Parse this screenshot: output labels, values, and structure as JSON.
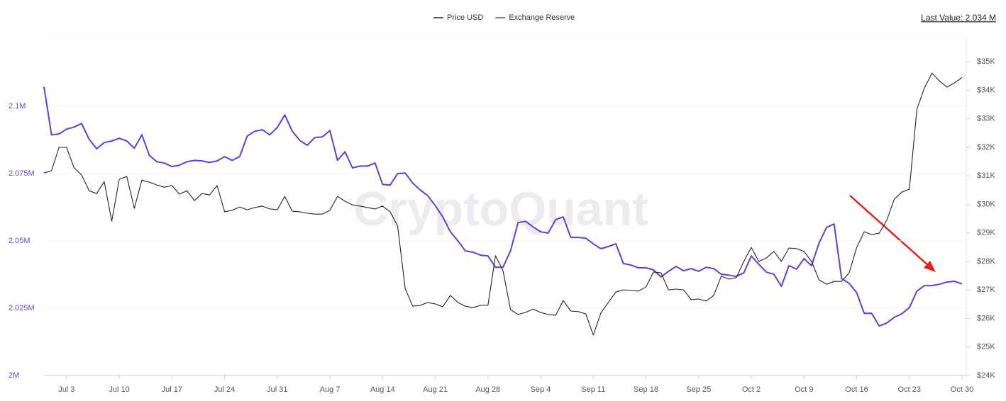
{
  "chart_data": {
    "type": "line",
    "watermark": "CryptoQuant",
    "last_value": "Last Value: 2.034 M",
    "categories": [
      null,
      null,
      null,
      "Jul 3",
      null,
      null,
      null,
      null,
      null,
      null,
      "Jul 10",
      null,
      null,
      null,
      null,
      null,
      null,
      "Jul 17",
      null,
      null,
      null,
      null,
      null,
      null,
      "Jul 24",
      null,
      null,
      null,
      null,
      null,
      null,
      "Jul 31",
      null,
      null,
      null,
      null,
      null,
      null,
      "Aug 7",
      null,
      null,
      null,
      null,
      null,
      null,
      "Aug 14",
      null,
      null,
      null,
      null,
      null,
      null,
      "Aug 21",
      null,
      null,
      null,
      null,
      null,
      null,
      "Aug 28",
      null,
      null,
      null,
      null,
      null,
      null,
      "Sep 4",
      null,
      null,
      null,
      null,
      null,
      null,
      "Sep 11",
      null,
      null,
      null,
      null,
      null,
      null,
      "Sep 18",
      null,
      null,
      null,
      null,
      null,
      null,
      "Sep 25",
      null,
      null,
      null,
      null,
      null,
      null,
      "Oct 2",
      null,
      null,
      null,
      null,
      null,
      null,
      "Oct 9",
      null,
      null,
      null,
      null,
      null,
      null,
      "Oct 16",
      null,
      null,
      null,
      null,
      null,
      null,
      "Oct 23",
      null,
      null,
      null,
      null,
      null,
      null,
      "Oct 30"
    ],
    "series": [
      {
        "name": "Price USD",
        "color": "#222222",
        "axis": "y2",
        "values": [
          31100,
          31180,
          32000,
          32000,
          31280,
          31030,
          30480,
          30380,
          30800,
          29410,
          30880,
          30980,
          29860,
          30850,
          30780,
          30680,
          30600,
          30660,
          30360,
          30480,
          30130,
          30380,
          30330,
          30660,
          29740,
          29790,
          29910,
          29810,
          29890,
          29940,
          29840,
          29810,
          30280,
          29760,
          29740,
          29690,
          29660,
          29660,
          29790,
          30280,
          30110,
          29980,
          29940,
          29890,
          29840,
          29940,
          29740,
          29240,
          27050,
          26430,
          26460,
          26560,
          26510,
          26410,
          26810,
          26560,
          26430,
          26380,
          26460,
          26460,
          28200,
          27680,
          26310,
          26140,
          26210,
          26330,
          26210,
          26140,
          26110,
          26630,
          26260,
          26240,
          26160,
          25420,
          26190,
          26560,
          26930,
          27000,
          26980,
          26960,
          27100,
          27630,
          27600,
          27000,
          27030,
          27000,
          26660,
          26680,
          26610,
          26810,
          27480,
          27380,
          27430,
          28000,
          28490,
          28000,
          28120,
          28350,
          28000,
          28470,
          28450,
          28350,
          28000,
          27350,
          27200,
          27300,
          27300,
          27600,
          28490,
          29040,
          28940,
          28990,
          29440,
          30180,
          30430,
          30530,
          33340,
          34080,
          34600,
          34330,
          34110,
          34260,
          34450
        ]
      },
      {
        "name": "Exchange Reserve",
        "color": "#5b3fe0",
        "values": [
          2107300,
          2089400,
          2089700,
          2091500,
          2092300,
          2093600,
          2087800,
          2084200,
          2086500,
          2087100,
          2088100,
          2087100,
          2084400,
          2089400,
          2081800,
          2079400,
          2078900,
          2077600,
          2078100,
          2079400,
          2079900,
          2079700,
          2079100,
          2079700,
          2081300,
          2079900,
          2081300,
          2088900,
          2090700,
          2091300,
          2089400,
          2092100,
          2096800,
          2090700,
          2087300,
          2085500,
          2088400,
          2088600,
          2091000,
          2079900,
          2083100,
          2077100,
          2077800,
          2077800,
          2078900,
          2071000,
          2070700,
          2075000,
          2075200,
          2071500,
          2068900,
          2066800,
          2063100,
          2058900,
          2053400,
          2050000,
          2046300,
          2045800,
          2044700,
          2044400,
          2040200,
          2040200,
          2046300,
          2056800,
          2057300,
          2055200,
          2053400,
          2052900,
          2057900,
          2058900,
          2051300,
          2051300,
          2051000,
          2048900,
          2047100,
          2047900,
          2048900,
          2041600,
          2041000,
          2040000,
          2040000,
          2039200,
          2036600,
          2038700,
          2040500,
          2038900,
          2039700,
          2038700,
          2040200,
          2039700,
          2037600,
          2037300,
          2036800,
          2038100,
          2044400,
          2041300,
          2038400,
          2037600,
          2033100,
          2040800,
          2039500,
          2043400,
          2040800,
          2049200,
          2055000,
          2056300,
          2036000,
          2034200,
          2030800,
          2023100,
          2023100,
          2018400,
          2019500,
          2021600,
          2022900,
          2025200,
          2031300,
          2033400,
          2033400,
          2033900,
          2034700,
          2035000,
          2034000
        ]
      }
    ],
    "ylim": [
      2000000,
      2125000
    ],
    "yticks": [
      {
        "value": 2000000,
        "label": "2M"
      },
      {
        "value": 2025000,
        "label": "2.025M"
      },
      {
        "value": 2050000,
        "label": "2.05M"
      },
      {
        "value": 2075000,
        "label": "2.075M"
      },
      {
        "value": 2100000,
        "label": "2.1M"
      }
    ],
    "y2lim": [
      24000,
      35800
    ],
    "y2ticks": [
      {
        "value": 24000,
        "label": "$24K"
      },
      {
        "value": 25000,
        "label": "$25K"
      },
      {
        "value": 26000,
        "label": "$26K"
      },
      {
        "value": 27000,
        "label": "$27K"
      },
      {
        "value": 28000,
        "label": "$28K"
      },
      {
        "value": 29000,
        "label": "$29K"
      },
      {
        "value": 30000,
        "label": "$30K"
      },
      {
        "value": 31000,
        "label": "$31K"
      },
      {
        "value": 32000,
        "label": "$32K"
      },
      {
        "value": 33000,
        "label": "$33K"
      },
      {
        "value": 34000,
        "label": "$34K"
      },
      {
        "value": 35000,
        "label": "$35K"
      }
    ],
    "grid": true
  }
}
